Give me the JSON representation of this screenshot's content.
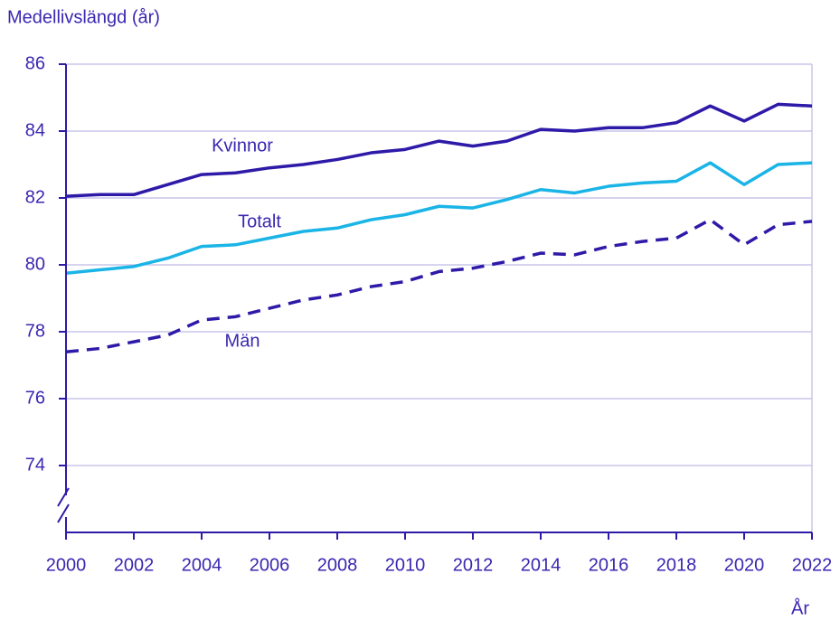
{
  "chart_data": {
    "type": "line",
    "y_label": "Medellivslängd (år)",
    "x_label": "År",
    "x": [
      2000,
      2001,
      2002,
      2003,
      2004,
      2005,
      2006,
      2007,
      2008,
      2009,
      2010,
      2011,
      2012,
      2013,
      2014,
      2015,
      2016,
      2017,
      2018,
      2019,
      2020,
      2021,
      2022
    ],
    "xlim": [
      2000,
      2022
    ],
    "xticks": [
      2000,
      2002,
      2004,
      2006,
      2008,
      2010,
      2012,
      2014,
      2016,
      2018,
      2020,
      2022
    ],
    "ylim": [
      72,
      86
    ],
    "yticks": [
      74,
      76,
      78,
      80,
      82,
      84,
      86
    ],
    "grid": true,
    "series": [
      {
        "name": "Kvinnor",
        "color": "#2e1aa8",
        "dash": false,
        "values": [
          82.05,
          82.1,
          82.1,
          82.4,
          82.7,
          82.75,
          82.9,
          83.0,
          83.15,
          83.35,
          83.45,
          83.7,
          83.55,
          83.7,
          84.05,
          84.0,
          84.1,
          84.1,
          84.25,
          84.75,
          84.3,
          84.8,
          84.75
        ]
      },
      {
        "name": "Totalt",
        "color": "#1ab4e6",
        "dash": false,
        "values": [
          79.75,
          79.85,
          79.95,
          80.2,
          80.55,
          80.6,
          80.8,
          81.0,
          81.1,
          81.35,
          81.5,
          81.75,
          81.7,
          81.95,
          82.25,
          82.15,
          82.35,
          82.45,
          82.5,
          83.05,
          82.4,
          83.0,
          83.05
        ]
      },
      {
        "name": "Män",
        "color": "#2e1aa8",
        "dash": true,
        "values": [
          77.4,
          77.5,
          77.7,
          77.9,
          78.35,
          78.45,
          78.7,
          78.95,
          79.1,
          79.35,
          79.5,
          79.8,
          79.9,
          80.1,
          80.35,
          80.3,
          80.55,
          80.7,
          80.8,
          81.35,
          80.6,
          81.2,
          81.3
        ]
      }
    ]
  }
}
